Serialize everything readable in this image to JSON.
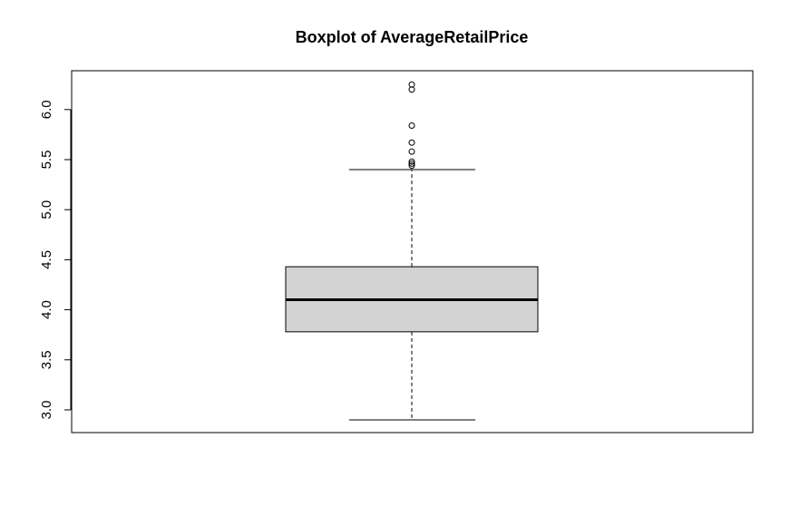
{
  "chart_data": {
    "type": "boxplot",
    "title": "Boxplot of AverageRetailPrice",
    "xlabel": "",
    "ylabel": "",
    "ylim": [
      2.9,
      6.27
    ],
    "yticks": [
      "3.0",
      "3.5",
      "4.0",
      "4.5",
      "5.0",
      "5.5",
      "6.0"
    ],
    "grid": false,
    "box": {
      "whisker_low": 2.9,
      "q1": 3.78,
      "median": 4.1,
      "q3": 4.43,
      "whisker_high": 5.4
    },
    "outliers": [
      5.44,
      5.46,
      5.48,
      5.58,
      5.67,
      5.84,
      6.2,
      6.25
    ],
    "colors": {
      "box_fill": "#d3d3d3",
      "stroke": "#000000",
      "background": "#ffffff"
    }
  }
}
